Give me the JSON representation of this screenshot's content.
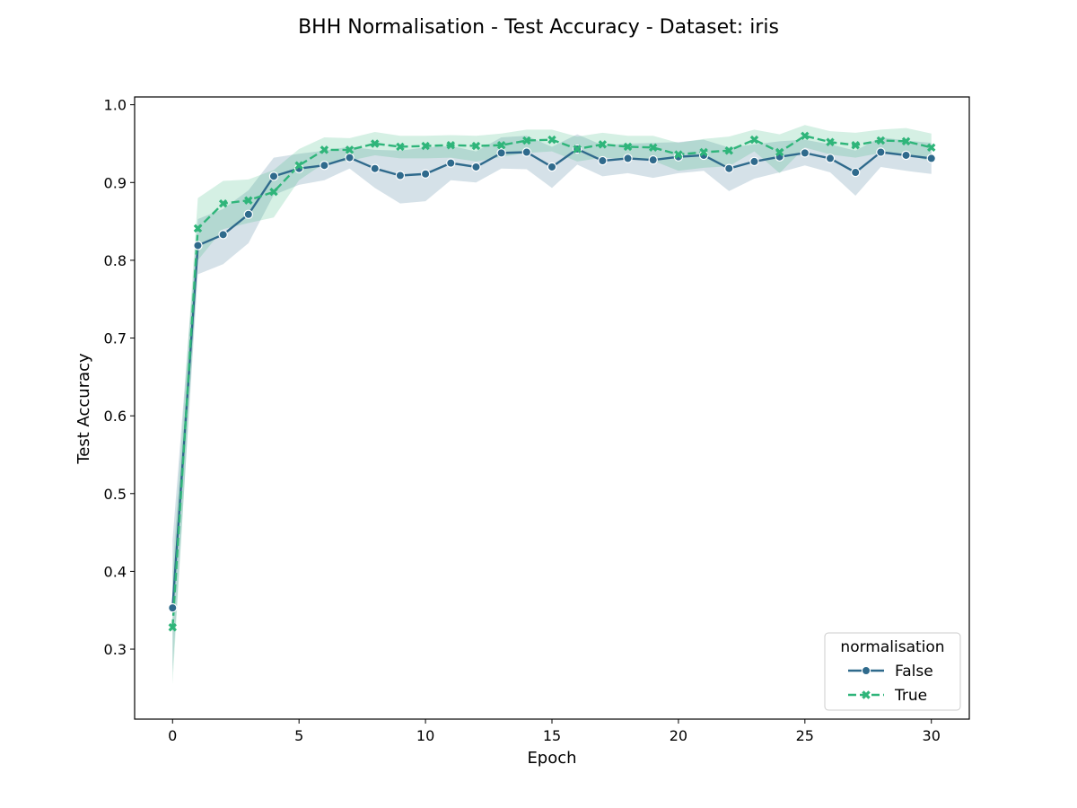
{
  "chart_data": {
    "type": "line",
    "title": "BHH Normalisation - Test Accuracy - Dataset: iris",
    "xlabel": "Epoch",
    "ylabel": "Test Accuracy",
    "xlim": [
      -1.5,
      31.5
    ],
    "ylim": [
      0.21,
      1.01
    ],
    "xticks": [
      0,
      5,
      10,
      15,
      20,
      25,
      30
    ],
    "yticks": [
      0.3,
      0.4,
      0.5,
      0.6,
      0.7,
      0.8,
      0.9,
      1.0
    ],
    "xtick_labels": [
      "0",
      "5",
      "10",
      "15",
      "20",
      "25",
      "30"
    ],
    "ytick_labels": [
      "0.3",
      "0.4",
      "0.5",
      "0.6",
      "0.7",
      "0.8",
      "0.9",
      "1.0"
    ],
    "grid": false,
    "legend": {
      "title": "normalisation",
      "placement": "lower-right"
    },
    "x": [
      0,
      1,
      2,
      3,
      4,
      5,
      6,
      7,
      8,
      9,
      10,
      11,
      12,
      13,
      14,
      15,
      16,
      17,
      18,
      19,
      20,
      21,
      22,
      23,
      24,
      25,
      26,
      27,
      28,
      29,
      30
    ],
    "series": [
      {
        "name": "False",
        "color": "#2f6a8c",
        "marker": "circle",
        "linestyle": "solid",
        "values": [
          0.353,
          0.819,
          0.833,
          0.859,
          0.908,
          0.918,
          0.922,
          0.932,
          0.918,
          0.909,
          0.911,
          0.925,
          0.92,
          0.938,
          0.939,
          0.92,
          0.943,
          0.928,
          0.931,
          0.929,
          0.933,
          0.935,
          0.918,
          0.927,
          0.933,
          0.938,
          0.931,
          0.913,
          0.939,
          0.935,
          0.931
        ],
        "ci_lower": [
          0.27,
          0.782,
          0.795,
          0.822,
          0.884,
          0.897,
          0.903,
          0.918,
          0.893,
          0.873,
          0.876,
          0.903,
          0.9,
          0.918,
          0.917,
          0.893,
          0.923,
          0.908,
          0.912,
          0.906,
          0.912,
          0.915,
          0.889,
          0.905,
          0.913,
          0.922,
          0.913,
          0.883,
          0.92,
          0.915,
          0.911
        ],
        "ci_upper": [
          0.44,
          0.853,
          0.866,
          0.89,
          0.932,
          0.937,
          0.941,
          0.946,
          0.942,
          0.941,
          0.945,
          0.947,
          0.94,
          0.958,
          0.96,
          0.946,
          0.962,
          0.948,
          0.95,
          0.951,
          0.952,
          0.955,
          0.945,
          0.949,
          0.953,
          0.955,
          0.949,
          0.941,
          0.958,
          0.954,
          0.951
        ]
      },
      {
        "name": "True",
        "color": "#2fb57a",
        "marker": "x",
        "linestyle": "dashed",
        "values": [
          0.328,
          0.841,
          0.873,
          0.877,
          0.888,
          0.922,
          0.942,
          0.942,
          0.95,
          0.946,
          0.947,
          0.948,
          0.947,
          0.948,
          0.954,
          0.955,
          0.943,
          0.949,
          0.946,
          0.945,
          0.936,
          0.939,
          0.941,
          0.955,
          0.939,
          0.96,
          0.952,
          0.948,
          0.954,
          0.953,
          0.945
        ],
        "ci_lower": [
          0.255,
          0.8,
          0.84,
          0.848,
          0.855,
          0.903,
          0.925,
          0.928,
          0.935,
          0.931,
          0.931,
          0.932,
          0.927,
          0.933,
          0.938,
          0.94,
          0.927,
          0.932,
          0.93,
          0.928,
          0.915,
          0.919,
          0.921,
          0.94,
          0.912,
          0.945,
          0.936,
          0.932,
          0.938,
          0.936,
          0.927
        ],
        "ci_upper": [
          0.4,
          0.88,
          0.902,
          0.904,
          0.916,
          0.943,
          0.958,
          0.957,
          0.965,
          0.96,
          0.96,
          0.961,
          0.96,
          0.963,
          0.968,
          0.968,
          0.959,
          0.964,
          0.96,
          0.96,
          0.951,
          0.956,
          0.959,
          0.968,
          0.962,
          0.974,
          0.966,
          0.964,
          0.968,
          0.97,
          0.963
        ]
      }
    ]
  }
}
